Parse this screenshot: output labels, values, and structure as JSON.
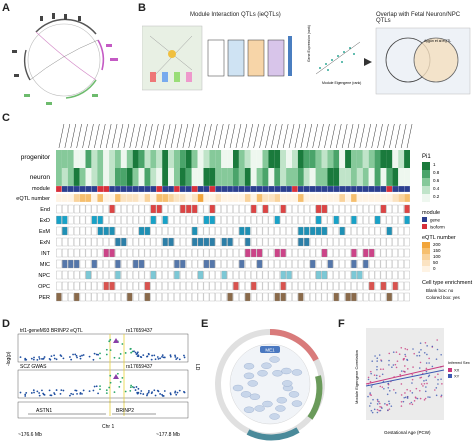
{
  "panels": {
    "A": "A",
    "B": "B",
    "C": "C",
    "D": "D",
    "E": "E",
    "F": "F"
  },
  "panelB": {
    "title_left": "Module Interaction QTLs (ieQTLs)",
    "title_right": "Overlap with Fetal Neuron/NPC QTLs",
    "axis_y": "Gene Expression (rank)",
    "axis_x": "Module Eigengene (rank)",
    "venn_label": "Aygün et al eQTL"
  },
  "panelC": {
    "row_labels": [
      "progenitor",
      "neuron",
      "module",
      "eQTL number",
      "End",
      "ExD",
      "ExM",
      "ExN",
      "INT",
      "MIC",
      "NPC",
      "OPC",
      "PER"
    ],
    "legend_pi1_title": "Pi1",
    "legend_pi1_ticks": [
      "1",
      "0.8",
      "0.6",
      "0.4",
      "0.2"
    ],
    "legend_module_title": "module",
    "legend_module_items": [
      "gene",
      "isoform"
    ],
    "legend_eqtl_title": "eQTL number",
    "legend_eqtl_ticks": [
      "200",
      "150",
      "100",
      "50",
      "0"
    ],
    "legend_enrich_title": "Cell type enrichment",
    "legend_enrich_items": [
      "Blank box: no",
      "Colored box: yes"
    ],
    "colors": {
      "green_dark": "#1a7a3c",
      "green_light": "#d7efdc",
      "module_gene": "#2b3f8f",
      "module_isoform": "#d7303a",
      "eqtl_high": "#f2a53a",
      "eqtl_low": "#fde6c8"
    }
  },
  "panelD": {
    "track1_label": "trl1-geneM93 BRINP2 eQTL",
    "track2_label": "SCZ GWAS",
    "snp_label": "rs17659437",
    "y_label": "-log(p)",
    "genes": [
      "ASTN1",
      "BRINP2"
    ],
    "chrom": "Chr 1",
    "x_start": "~176.6 Mb",
    "x_end": "~177.8 Mb",
    "ld_label": "LD"
  },
  "panelE": {
    "center_label": "ME1"
  },
  "panelF": {
    "x_label": "Gestational Age (PCW)",
    "y_label": "Module Eigengene Correlation",
    "legend_title": "Inferred Sex",
    "legend_items": [
      "XX",
      "XY"
    ],
    "colors": {
      "xx": "#c9397e",
      "xy": "#3d59b2"
    }
  },
  "chart_data": [
    {
      "type": "heatmap",
      "title": "",
      "rows": [
        "progenitor",
        "neuron"
      ],
      "legend": "Pi1"
    },
    {
      "type": "scatter",
      "xlabel": "Gestational Age (PCW)",
      "ylabel": "Module Eigengene Correlation",
      "series": [
        {
          "name": "XX"
        },
        {
          "name": "XY"
        }
      ]
    }
  ]
}
